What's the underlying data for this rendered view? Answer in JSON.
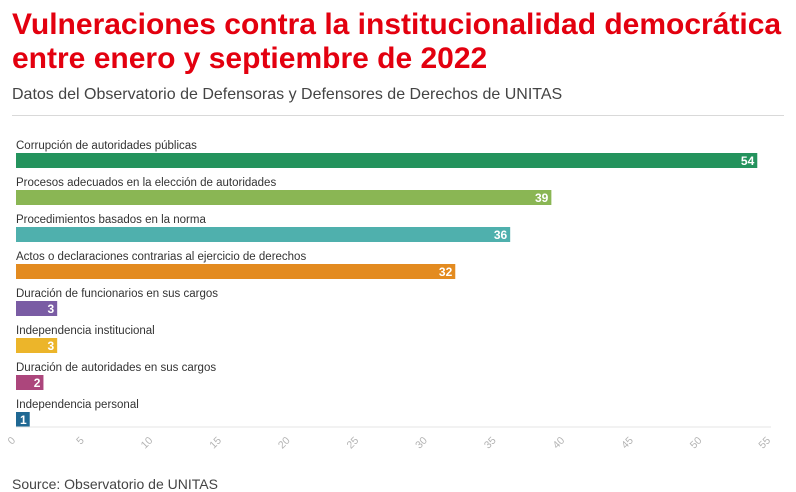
{
  "title": "Vulneraciones contra la institucionalidad democrática\nentre enero y septiembre de 2022",
  "subtitle": "Datos del Observatorio de Defensoras y Defensores de Derechos de UNITAS",
  "source": "Source: Observatorio de UNITAS",
  "chart_data": {
    "type": "bar",
    "orientation": "horizontal",
    "categories": [
      "Corrupción de autoridades públicas",
      "Procesos adecuados en la elección de autoridades",
      "Procedimientos basados en la norma",
      "Actos o declaraciones contrarias al ejercicio de derechos",
      "Duración de funcionarios en sus cargos",
      "Independencia institucional",
      "Duración de autoridades en sus cargos",
      "Independencia personal"
    ],
    "values": [
      54,
      39,
      36,
      32,
      3,
      3,
      2,
      1
    ],
    "colors": [
      "#24935d",
      "#8ab654",
      "#4fb0ad",
      "#e38b20",
      "#7a5ca4",
      "#ecb52a",
      "#ac467c",
      "#1f6893"
    ],
    "xlim": [
      0,
      55
    ],
    "ticks": [
      0,
      5,
      10,
      15,
      20,
      25,
      30,
      35,
      40,
      45,
      50,
      55
    ],
    "title": "",
    "xlabel": "",
    "ylabel": "",
    "grid": false,
    "legend": "none"
  }
}
